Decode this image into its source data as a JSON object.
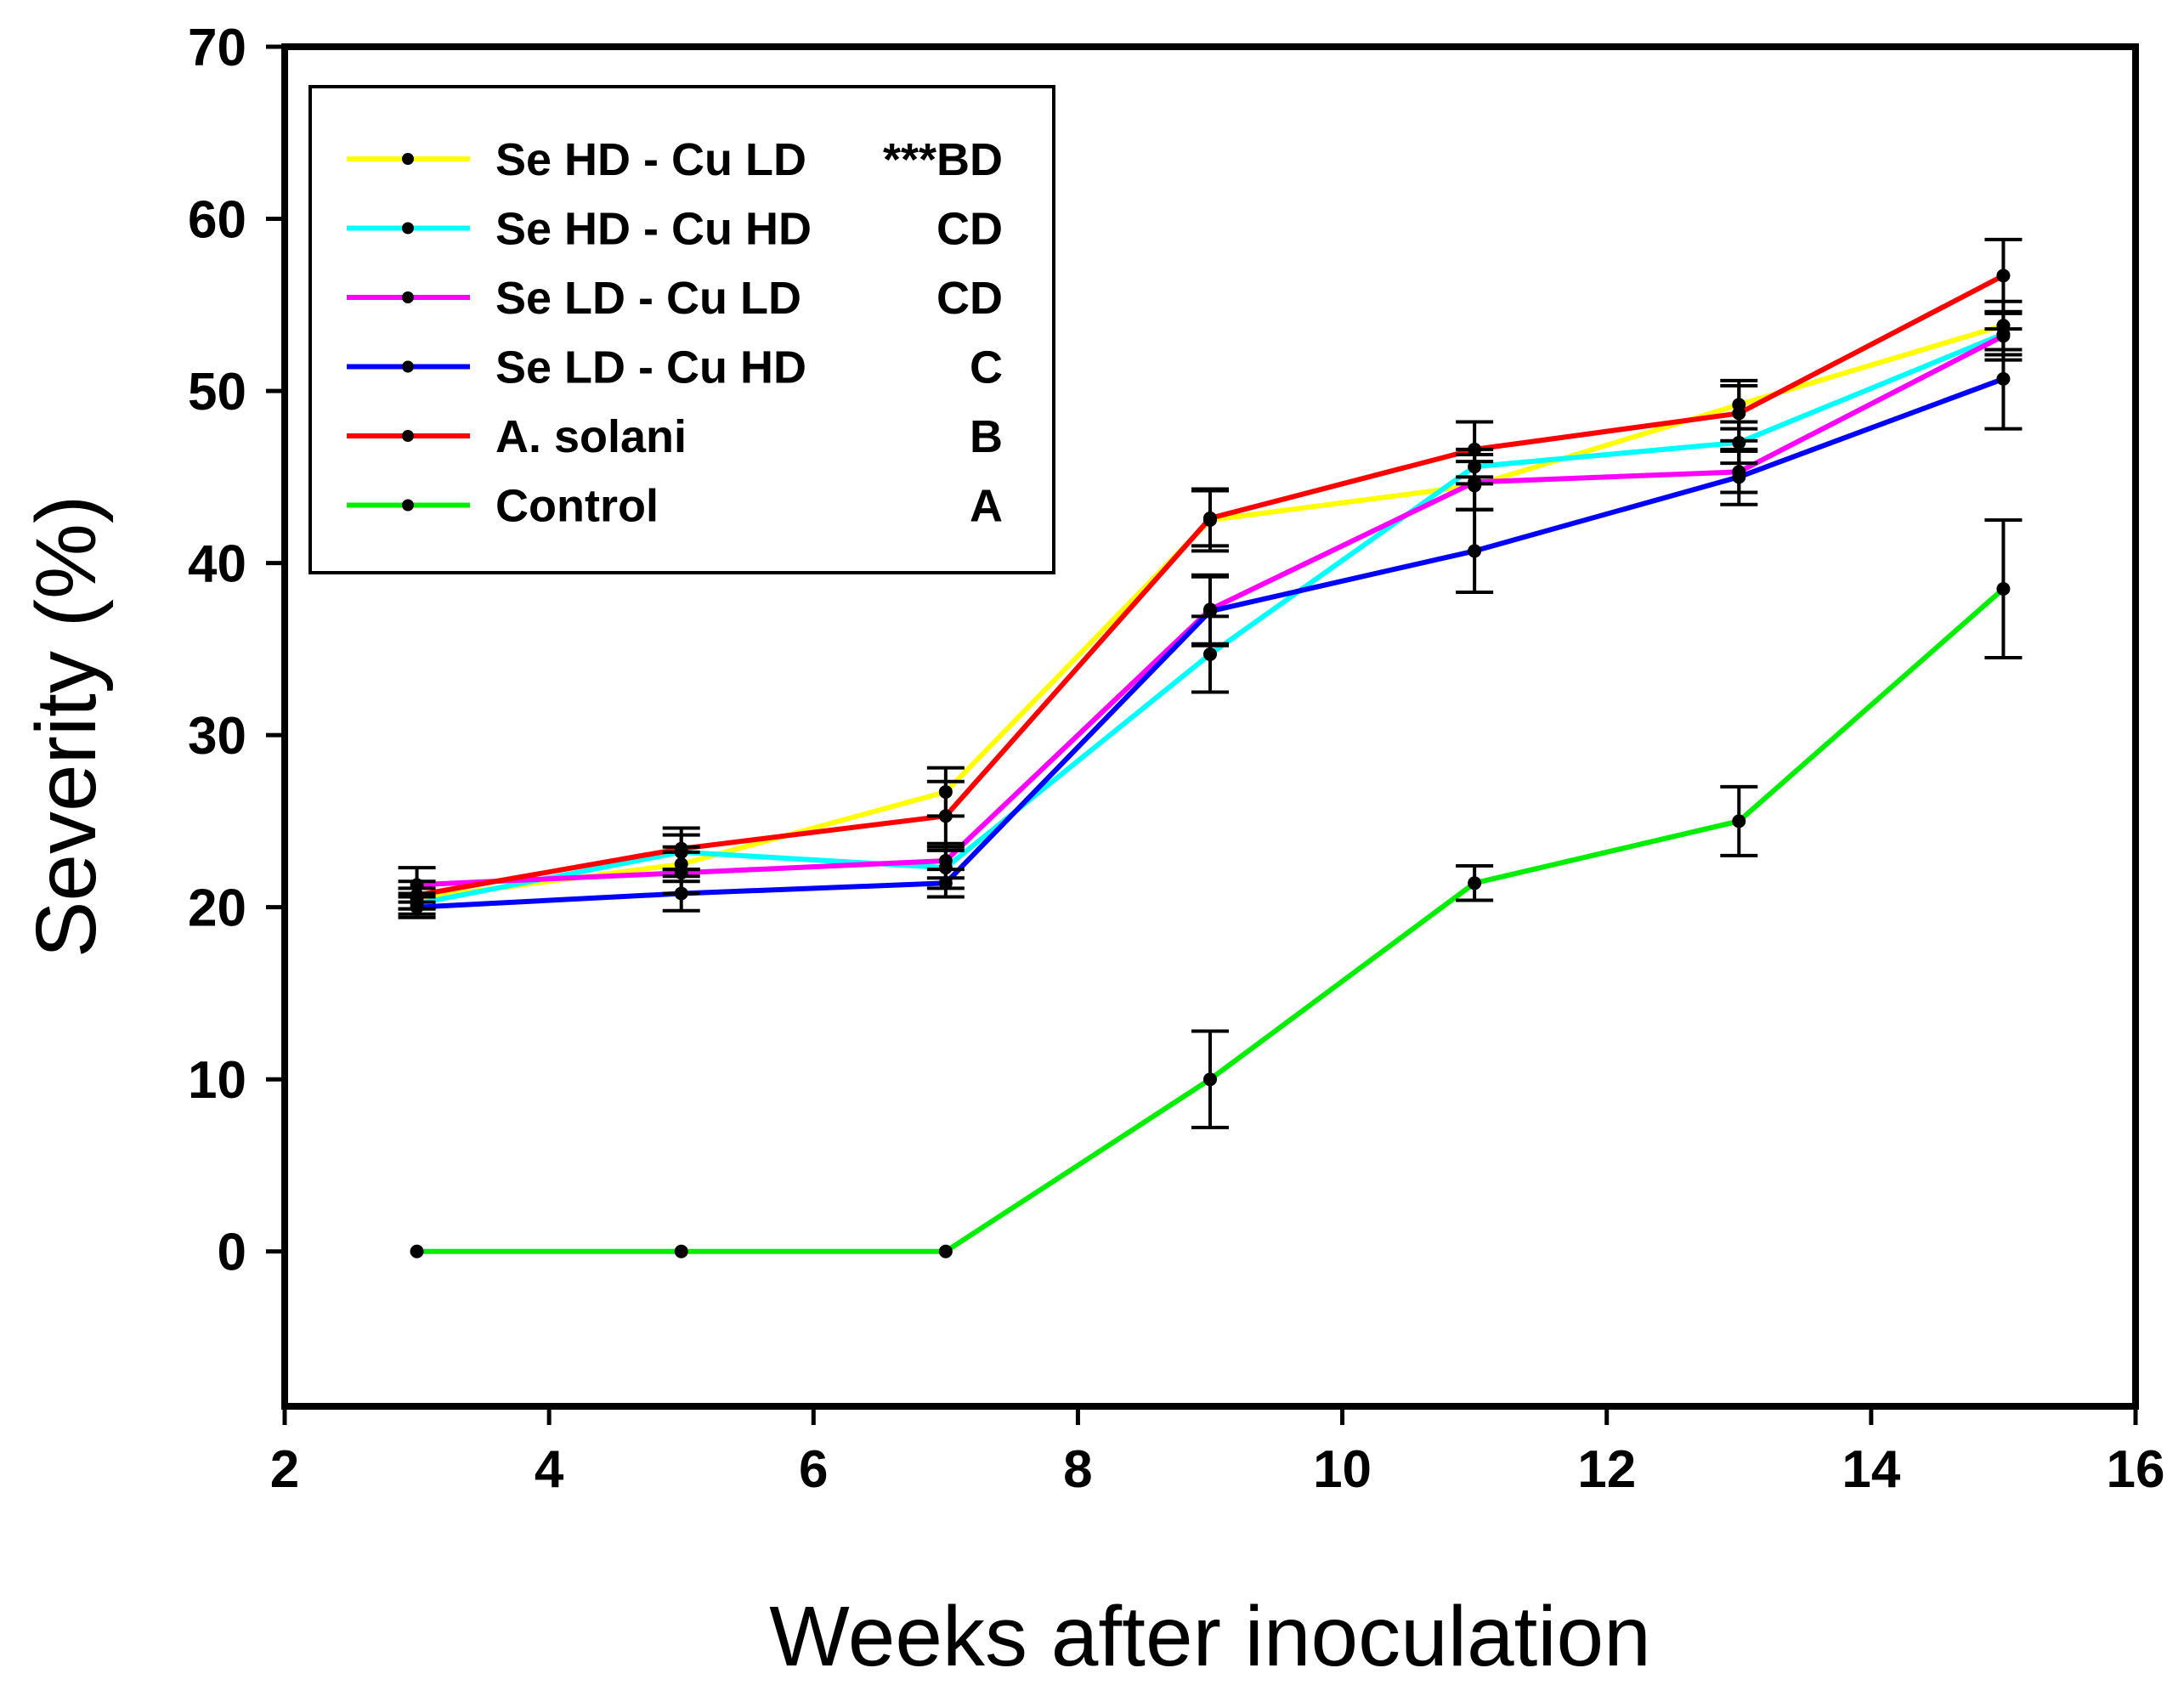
{
  "chart_data": {
    "type": "line",
    "title": "",
    "xlabel": "Weeks after inoculation",
    "ylabel": "Severity (%)",
    "xlim": [
      2,
      16
    ],
    "ylim": [
      -9,
      70
    ],
    "xticks": [
      2,
      4,
      6,
      8,
      10,
      12,
      14,
      16
    ],
    "yticks": [
      0,
      10,
      20,
      30,
      40,
      50,
      60,
      70
    ],
    "x": [
      3,
      5,
      7,
      9,
      11,
      13,
      15
    ],
    "legend_position": "top-left",
    "series": [
      {
        "name": "Se HD - Cu LD",
        "group": "***BD",
        "color": "#ffff00",
        "values": [
          20.5,
          22.5,
          26.7,
          42.5,
          44.5,
          49.2,
          53.8
        ],
        "errors": [
          0.6,
          1.0,
          1.4,
          1.8,
          1.4,
          1.4,
          1.4
        ]
      },
      {
        "name": "Se HD - Cu HD",
        "group": "CD",
        "color": "#00ffff",
        "values": [
          20.2,
          23.2,
          22.3,
          34.7,
          45.6,
          47.0,
          53.3
        ],
        "errors": [
          0.6,
          1.0,
          1.2,
          2.2,
          1.0,
          1.2,
          1.2
        ]
      },
      {
        "name": "Se LD - Cu LD",
        "group": "CD",
        "color": "#ff00ff",
        "values": [
          21.3,
          22.0,
          22.7,
          37.3,
          44.7,
          45.3,
          53.2
        ],
        "errors": [
          1.0,
          1.2,
          1.0,
          2.0,
          1.6,
          1.2,
          1.4
        ]
      },
      {
        "name": "Se LD - Cu HD",
        "group": "C",
        "color": "#0000ff",
        "values": [
          20.0,
          20.8,
          21.4,
          37.2,
          40.7,
          45.0,
          50.7
        ],
        "errors": [
          0.6,
          1.0,
          0.8,
          2.0,
          2.4,
          1.6,
          2.9
        ]
      },
      {
        "name": "A. solani",
        "group": "B",
        "color": "#ff0000",
        "values": [
          20.7,
          23.4,
          25.3,
          42.6,
          46.6,
          48.7,
          56.7
        ],
        "errors": [
          0.8,
          1.2,
          2.0,
          1.6,
          1.6,
          1.6,
          2.1
        ]
      },
      {
        "name": "Control",
        "group": "A",
        "color": "#00ee00",
        "values": [
          0,
          0,
          0,
          10.0,
          21.4,
          25.0,
          38.5
        ],
        "errors": [
          0,
          0,
          0,
          2.8,
          1.0,
          2.0,
          4.0
        ]
      }
    ]
  }
}
